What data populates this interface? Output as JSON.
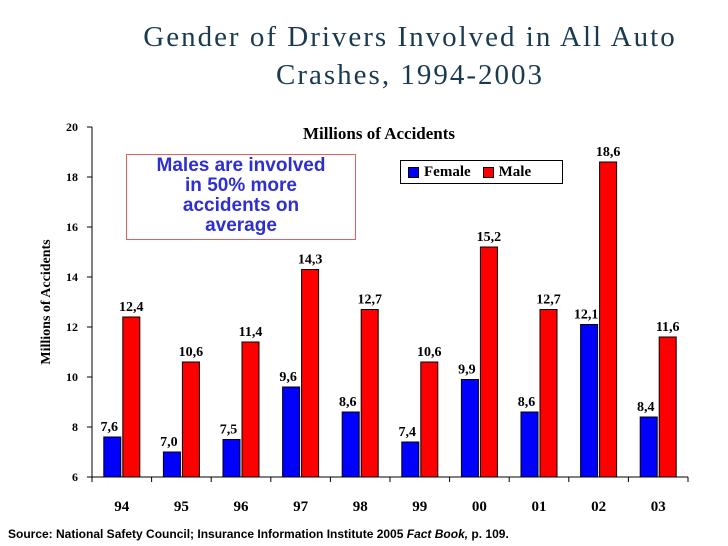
{
  "slide": {
    "title_line1": "Gender of Drivers Involved in All Auto",
    "title_line2": "Crashes, 1994-2003"
  },
  "callout": {
    "line1": "Males are involved",
    "line2": "in 50% more",
    "line3": "accidents on",
    "line4": "average"
  },
  "source": {
    "prefix": "Source:  National Safety Council; Insurance Information Institute 2005 ",
    "book": "Fact Book,",
    "suffix": " p. 109."
  },
  "chart_data": {
    "type": "bar",
    "title": "Millions of Accidents",
    "xlabel": "",
    "ylabel": "Millions of Accidents",
    "ylim": [
      6,
      20
    ],
    "yticks": [
      6,
      8,
      10,
      12,
      14,
      16,
      18,
      20
    ],
    "grid": false,
    "legend_position": "top-right",
    "categories": [
      "94",
      "95",
      "96",
      "97",
      "98",
      "99",
      "00",
      "01",
      "02",
      "03"
    ],
    "series": [
      {
        "name": "Female",
        "color": "#0000ff",
        "values": [
          7.6,
          7.0,
          7.5,
          9.6,
          8.6,
          7.4,
          9.9,
          8.6,
          12.1,
          8.4
        ],
        "labels": [
          "7,6",
          "7,0",
          "7,5",
          "9,6",
          "8,6",
          "7,4",
          "9,9",
          "8,6",
          "12,1",
          "8,4"
        ]
      },
      {
        "name": "Male",
        "color": "#ff0000",
        "values": [
          12.4,
          10.6,
          11.4,
          14.3,
          12.7,
          10.6,
          15.2,
          12.7,
          18.6,
          11.6
        ],
        "labels": [
          "12,4",
          "10,6",
          "11,4",
          "14,3",
          "12,7",
          "10,6",
          "15,2",
          "12,7",
          "18,6",
          "11,6"
        ]
      }
    ]
  }
}
